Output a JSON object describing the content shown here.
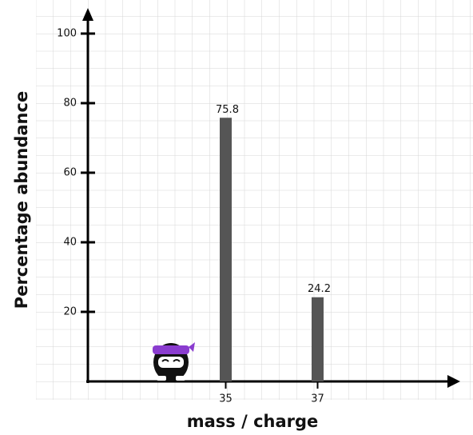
{
  "chart_data": {
    "type": "bar",
    "x_label": "mass / charge",
    "y_label": "Percentage abundance",
    "x": [
      35,
      37
    ],
    "values": [
      75.8,
      24.2
    ],
    "color": "#555555",
    "xlim": [
      32,
      40
    ],
    "xticks": [
      35,
      37
    ],
    "ylim": [
      0,
      100
    ],
    "yticks": [
      20,
      40,
      60,
      80,
      100
    ]
  }
}
